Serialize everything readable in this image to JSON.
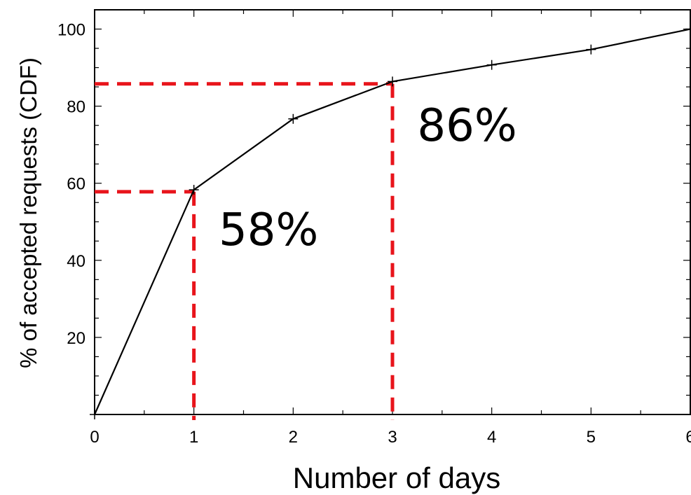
{
  "chart_data": {
    "type": "line",
    "xlabel": "Number of days",
    "ylabel": "% of accepted requests (CDF)",
    "xlim": [
      0,
      6
    ],
    "ylim": [
      0,
      105
    ],
    "x_ticks": [
      "0",
      "1",
      "2",
      "3",
      "4",
      "5",
      "6"
    ],
    "y_ticks": [
      "20",
      "40",
      "60",
      "80",
      "100"
    ],
    "series": [
      {
        "x": [
          0,
          1,
          2,
          3,
          4,
          5,
          6
        ],
        "y": [
          0,
          58.3,
          76.7,
          86.4,
          90.7,
          94.7,
          100
        ],
        "color": "#000000",
        "marker": "plus"
      }
    ],
    "reference_lines": [
      {
        "x": 1,
        "y": 57.8,
        "color": "#e8141b",
        "style": "dashed"
      },
      {
        "x": 3,
        "y": 85.8,
        "color": "#e8141b",
        "style": "dashed"
      }
    ],
    "annotations": [
      {
        "text": "58%",
        "x": 1.25,
        "y": 44
      },
      {
        "text": "86%",
        "x": 3.25,
        "y": 71
      }
    ],
    "grid": false
  }
}
